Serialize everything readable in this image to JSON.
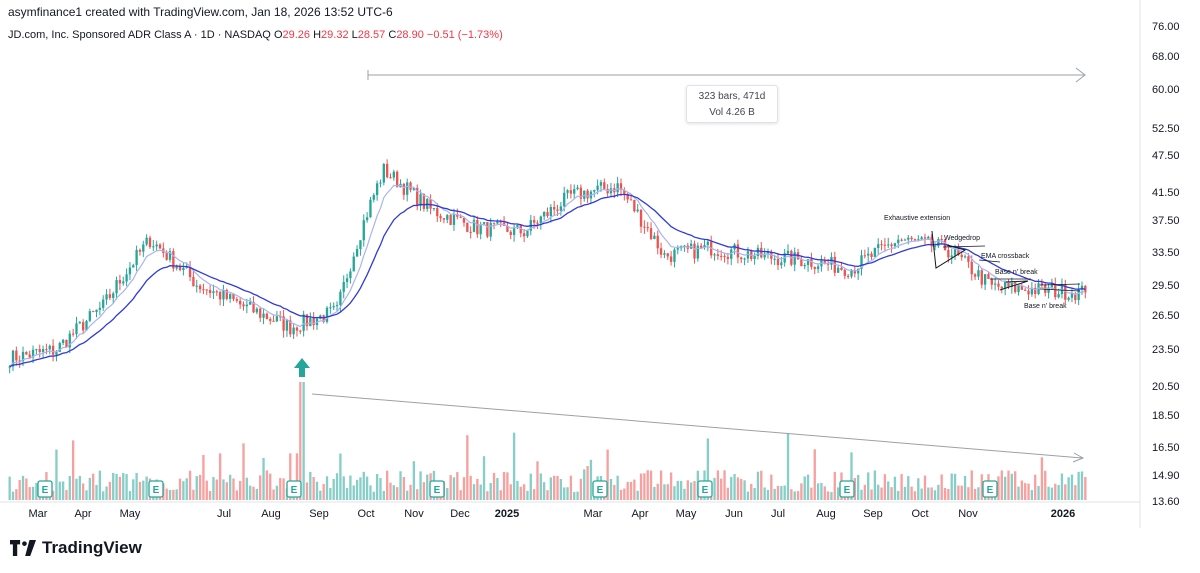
{
  "credit": "asymfinance1 created with TradingView.com, Jan 18, 2026 13:52 UTC-6",
  "symbol_line": "JD.com, Inc. Sponsored ADR Class A · 1D · NASDAQ",
  "ohlc": {
    "o_label": "O",
    "o": "29.26",
    "h_label": "H",
    "h": "29.32",
    "l_label": "L",
    "l": "28.57",
    "c_label": "C",
    "c": "28.90",
    "change": "−0.51 (−1.73%)"
  },
  "measure": {
    "bars": "323 bars, 471d",
    "vol": "Vol 4.26 B"
  },
  "brand": "TradingView",
  "colors": {
    "up": "#26a69a",
    "down": "#ef5350",
    "ema_fast": "#a9b4f0",
    "ema_slow": "#2f3bd8",
    "earnings": "#26a69a"
  },
  "chart_data": {
    "type": "candlestick",
    "title": "JD.com, Inc. Sponsored ADR Class A · 1D · NASDAQ",
    "y_axis": {
      "scale": "log",
      "tick_labels": [
        "76.00",
        "68.00",
        "60.00",
        "52.50",
        "47.50",
        "41.50",
        "37.50",
        "33.50",
        "29.50",
        "26.50",
        "23.50",
        "20.50",
        "18.50",
        "16.50",
        "14.90",
        "13.60"
      ]
    },
    "x_axis": {
      "tick_labels": [
        "Mar",
        "Apr",
        "May",
        "Jul",
        "Aug",
        "Sep",
        "Oct",
        "Nov",
        "Dec",
        "2025",
        "Mar",
        "Apr",
        "May",
        "Jun",
        "Jul",
        "Aug",
        "Sep",
        "Oct",
        "Nov",
        "2026"
      ]
    },
    "price_path": [
      {
        "date": "Feb 2024",
        "close": 22.8
      },
      {
        "date": "Mar 2024",
        "close": 23.5
      },
      {
        "date": "Apr 2024",
        "close": 27.5
      },
      {
        "date": "May 2024",
        "close": 35.0
      },
      {
        "date": "Jun 2024",
        "close": 29.8
      },
      {
        "date": "Jul 2024",
        "close": 27.5
      },
      {
        "date": "Aug 2024",
        "close": 25.5
      },
      {
        "date": "Sep 2024",
        "close": 27.0
      },
      {
        "date": "Oct 2024",
        "close": 45.0
      },
      {
        "date": "Nov 2024",
        "close": 39.0
      },
      {
        "date": "Dec 2024",
        "close": 36.5
      },
      {
        "date": "Jan 2025",
        "close": 36.0
      },
      {
        "date": "Feb 2025",
        "close": 41.0
      },
      {
        "date": "Mar 2025",
        "close": 42.5
      },
      {
        "date": "Apr 2025",
        "close": 33.0
      },
      {
        "date": "May 2025",
        "close": 34.0
      },
      {
        "date": "Jun 2025",
        "close": 33.0
      },
      {
        "date": "Jul 2025",
        "close": 32.5
      },
      {
        "date": "Aug 2025",
        "close": 31.5
      },
      {
        "date": "Sep 2025",
        "close": 35.0
      },
      {
        "date": "Oct 2025",
        "close": 34.0
      },
      {
        "date": "Nov 2025",
        "close": 29.5
      },
      {
        "date": "Dec 2025",
        "close": 29.2
      },
      {
        "date": "Jan 2026",
        "close": 28.9
      }
    ],
    "overlays": [
      "EMA fast (light blue)",
      "EMA slow (dark blue)"
    ],
    "earnings_markers": 8,
    "annotations": [
      {
        "text": "Exhaustive extension"
      },
      {
        "text": "Wedgedrop"
      },
      {
        "text": "EMA crossback"
      },
      {
        "text": "Base n' break"
      },
      {
        "text": "Base n' break"
      }
    ],
    "volume_spike_marker": "up-arrow at Aug 2024 volume spike",
    "volume_trendline": "descending from Aug 2024 to Jan 2026"
  }
}
